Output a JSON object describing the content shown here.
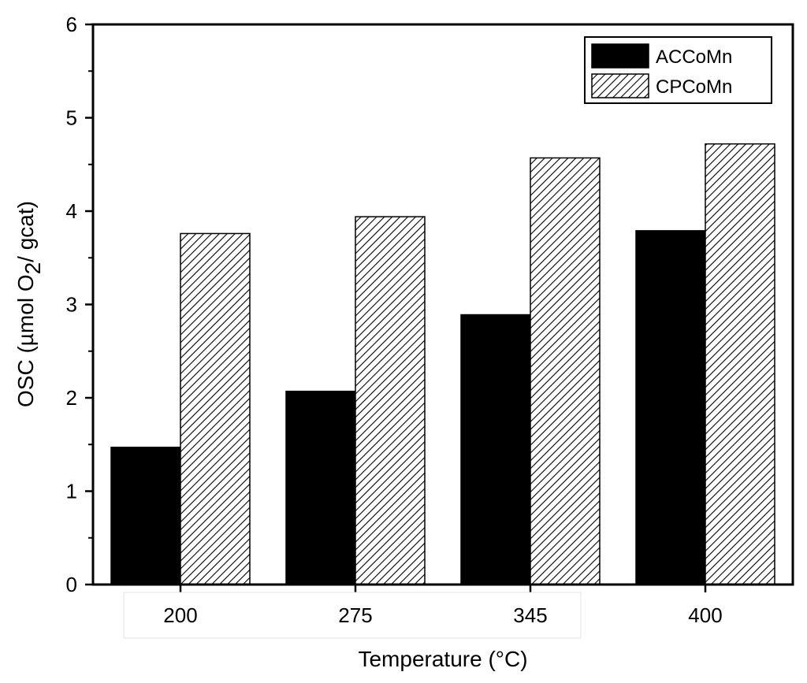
{
  "chart_data": {
    "type": "bar",
    "categories": [
      "200",
      "275",
      "345",
      "400"
    ],
    "series": [
      {
        "name": "ACCoMn",
        "values": [
          1.47,
          2.07,
          2.89,
          3.79
        ],
        "fill": "solid",
        "color": "#000000"
      },
      {
        "name": "CPCoMn",
        "values": [
          3.76,
          3.94,
          4.57,
          4.72
        ],
        "fill": "hatched",
        "color": "#000000"
      }
    ],
    "xlabel": "Temperature (°C)",
    "ylabel": {
      "prefix": "OSC (µmol O",
      "subscript": "2",
      "suffix": "/ gcat)"
    },
    "ylim": [
      0,
      6
    ],
    "yticks": [
      "0",
      "1",
      "2",
      "3",
      "4",
      "5",
      "6"
    ],
    "grid": false,
    "legend_position": "top-right"
  }
}
